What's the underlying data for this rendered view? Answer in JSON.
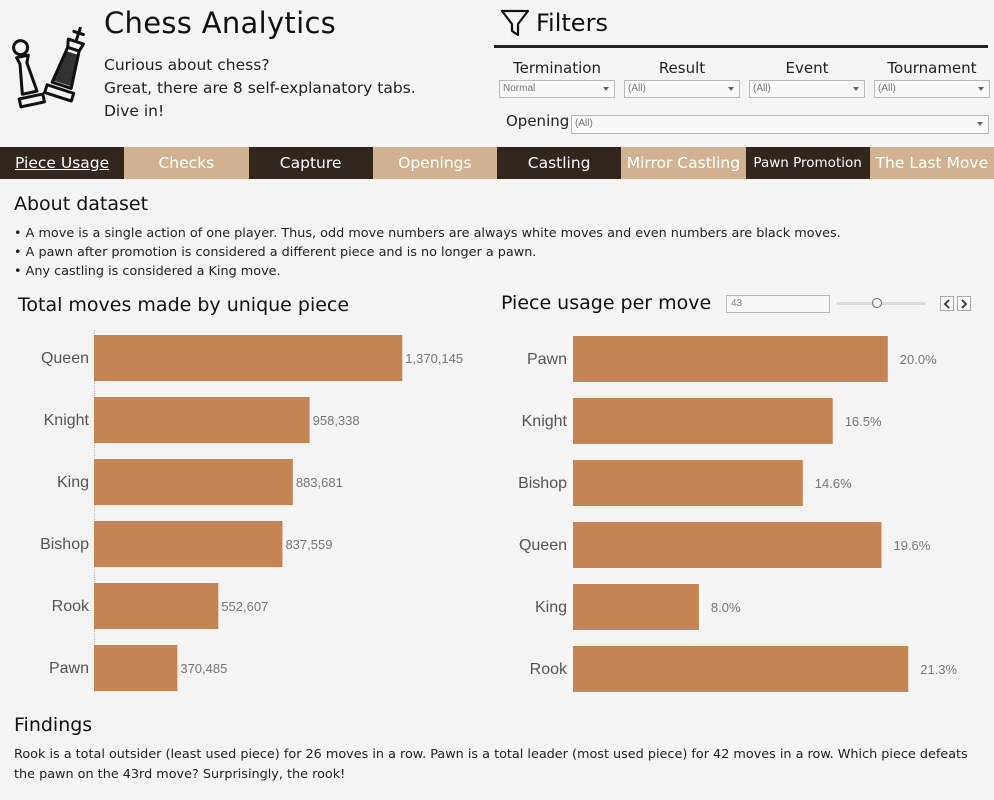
{
  "app": {
    "title": "Chess Analytics",
    "intro": [
      "Curious about chess?",
      "Great, there are 8 self-explanatory tabs.",
      "Dive in!"
    ]
  },
  "filters": {
    "title": "Filters",
    "termination": {
      "label": "Termination",
      "value": "Normal"
    },
    "result": {
      "label": "Result",
      "value": "(All)"
    },
    "event": {
      "label": "Event",
      "value": "(All)"
    },
    "tournament": {
      "label": "Tournament",
      "value": "(All)"
    },
    "opening": {
      "label": "Opening",
      "value": "(All)"
    }
  },
  "tabs": [
    {
      "label": "Piece Usage",
      "active": true
    },
    {
      "label": "Checks"
    },
    {
      "label": "Capture"
    },
    {
      "label": "Openings"
    },
    {
      "label": "Castling"
    },
    {
      "label": "Mirror Castling"
    },
    {
      "label": "Pawn Promotion"
    },
    {
      "label": "The Last Move"
    }
  ],
  "about": {
    "title": "About dataset",
    "items": [
      "A move is a single action of one player. Thus, odd move numbers are always white moves and even numbers are black moves.",
      "A pawn after promotion is considered a different piece and is no longer a pawn.",
      "Any castling is considered a King move."
    ]
  },
  "move_param": {
    "value": "43"
  },
  "findings": {
    "title": "Findings",
    "text": "Rook is a total outsider (least used piece) for 26 moves in a row. Pawn is a total leader (most used piece) for 42 moves in a row. Which piece defeats the pawn on the 43rd move? Surprisingly, the rook!"
  },
  "colors": {
    "bar": "#c48454",
    "dark_tab": "#31271f",
    "light_tab": "#d2b391"
  },
  "chart_data": [
    {
      "type": "bar",
      "orientation": "horizontal",
      "title": "Total moves made by unique piece",
      "categories": [
        "Queen",
        "Knight",
        "King",
        "Bishop",
        "Rook",
        "Pawn"
      ],
      "values": [
        1370145,
        958338,
        883681,
        837559,
        552607,
        370485
      ],
      "labels": [
        "1,370,145",
        "958,338",
        "883,681",
        "837,559",
        "552,607",
        "370,485"
      ],
      "xlim": [
        0,
        1400000
      ]
    },
    {
      "type": "bar",
      "orientation": "horizontal",
      "title": "Piece usage per move",
      "categories": [
        "Pawn",
        "Knight",
        "Bishop",
        "Queen",
        "King",
        "Rook"
      ],
      "values": [
        20.0,
        16.5,
        14.6,
        19.6,
        8.0,
        21.3
      ],
      "labels": [
        "20.0%",
        "16.5%",
        "14.6%",
        "19.6%",
        "8.0%",
        "21.3%"
      ],
      "xlim": [
        0,
        23
      ]
    }
  ]
}
